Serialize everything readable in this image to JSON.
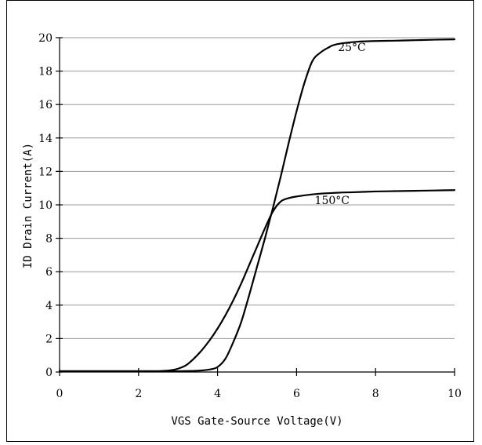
{
  "chart_data": {
    "type": "line",
    "title": "",
    "xlabel": "VGS Gate-Source Voltage(V)",
    "ylabel": "ID Drain Current(A)",
    "xlim": [
      0,
      10
    ],
    "ylim": [
      0,
      20
    ],
    "x_ticks": [
      0,
      2,
      4,
      6,
      8,
      10
    ],
    "y_ticks": [
      0,
      2,
      4,
      6,
      8,
      10,
      12,
      14,
      16,
      18,
      20
    ],
    "grid": "horizontal",
    "legend": "none",
    "series": [
      {
        "name": "25°C",
        "color": "#000000",
        "x": [
          0,
          1,
          2,
          3,
          3.5,
          3.8,
          4.0,
          4.2,
          4.4,
          4.6,
          4.8,
          5.0,
          5.2,
          5.4,
          5.6,
          5.8,
          6.0,
          6.2,
          6.4,
          6.6,
          6.8,
          7.0,
          7.5,
          8.0,
          8.5,
          9.0,
          9.5,
          10.0
        ],
        "y": [
          0.05,
          0.05,
          0.05,
          0.05,
          0.08,
          0.15,
          0.3,
          0.8,
          1.8,
          3.0,
          4.6,
          6.3,
          8.0,
          9.8,
          11.7,
          13.7,
          15.6,
          17.3,
          18.6,
          19.1,
          19.4,
          19.6,
          19.75,
          19.8,
          19.82,
          19.85,
          19.88,
          19.9
        ]
      },
      {
        "name": "150°C",
        "color": "#000000",
        "x": [
          0,
          1,
          2,
          2.5,
          2.8,
          3.0,
          3.2,
          3.4,
          3.6,
          3.8,
          4.0,
          4.2,
          4.4,
          4.6,
          4.8,
          5.0,
          5.2,
          5.4,
          5.6,
          5.8,
          6.0,
          6.5,
          7.0,
          7.5,
          8.0,
          8.5,
          9.0,
          9.5,
          10.0
        ],
        "y": [
          0.05,
          0.05,
          0.05,
          0.05,
          0.1,
          0.2,
          0.4,
          0.8,
          1.3,
          1.9,
          2.6,
          3.4,
          4.3,
          5.3,
          6.4,
          7.5,
          8.6,
          9.6,
          10.2,
          10.4,
          10.5,
          10.65,
          10.72,
          10.76,
          10.8,
          10.82,
          10.84,
          10.86,
          10.88
        ],
        "label": "150°C"
      }
    ],
    "annotations": [
      {
        "text": "25°C",
        "x": 7.4,
        "y": 19.2
      },
      {
        "text": "150°C",
        "x": 6.9,
        "y": 10.05
      }
    ]
  }
}
